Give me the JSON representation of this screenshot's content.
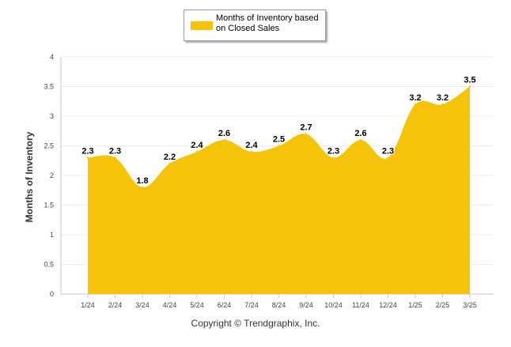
{
  "chart_data": {
    "type": "area",
    "categories": [
      "1/24",
      "2/24",
      "3/24",
      "4/24",
      "5/24",
      "6/24",
      "7/24",
      "8/24",
      "9/24",
      "10/24",
      "11/24",
      "12/24",
      "1/25",
      "2/25",
      "3/25"
    ],
    "series": [
      {
        "name": "Months of Inventory based on Closed Sales",
        "values": [
          2.3,
          2.3,
          1.8,
          2.2,
          2.4,
          2.6,
          2.4,
          2.5,
          2.7,
          2.3,
          2.6,
          2.3,
          3.2,
          3.2,
          3.5
        ]
      }
    ],
    "data_labels": [
      "2.3",
      "2.3",
      "1.8",
      "2.2",
      "2.4",
      "2.6",
      "2.4",
      "2.5",
      "2.7",
      "2.3",
      "2.6",
      "2.3",
      "3.2",
      "3.2",
      "3.5"
    ],
    "ylabel": "Months of Inventory",
    "xlabel": "",
    "ylim": [
      0,
      4
    ],
    "yticks": [
      0,
      0.5,
      1,
      1.5,
      2,
      2.5,
      3,
      3.5,
      4
    ],
    "ytick_labels": [
      "0",
      "0.5",
      "1",
      "1.5",
      "2",
      "2.5",
      "3",
      "3.5",
      "4"
    ],
    "grid": true,
    "legend_position": "top-center",
    "color": "#f5c30a"
  },
  "footer": {
    "copyright": "Copyright © Trendgraphix, Inc."
  }
}
